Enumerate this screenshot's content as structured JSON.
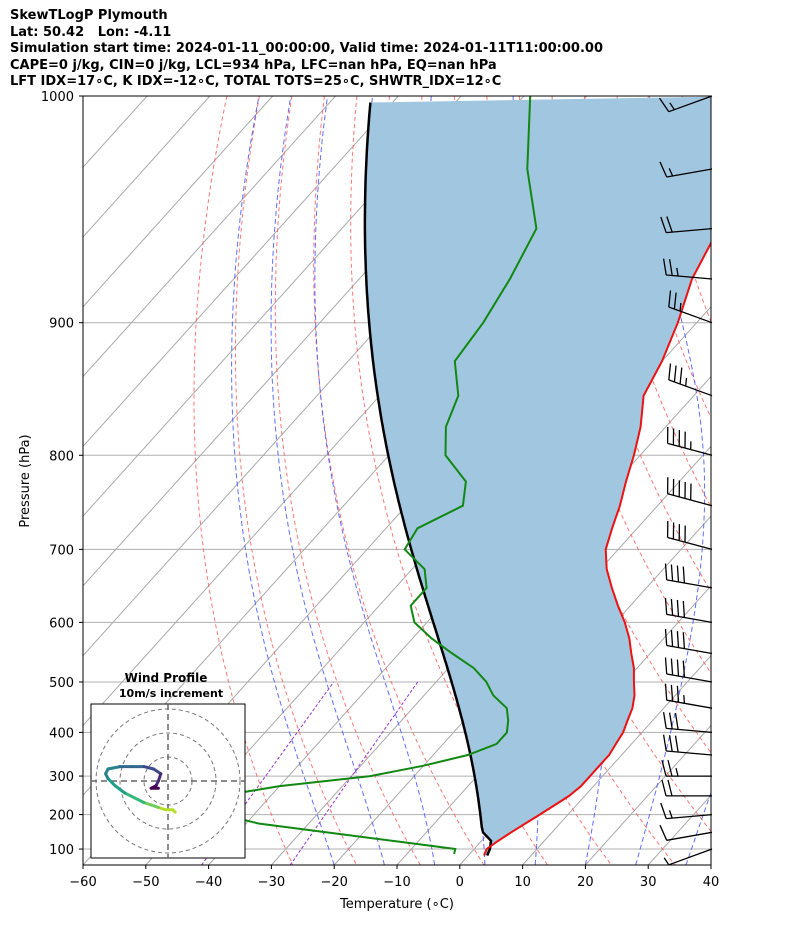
{
  "title_lines": [
    "SkewTLogP Plymouth",
    "Lat: 50.42   Lon: -4.11",
    "Simulation start time: 2024-01-11_00:00:00, Valid time: 2024-01-11T11:00:00.00",
    "CAPE=0 j/kg, CIN=0 j/kg, LCL=934 hPa, LFC=nan hPa, EQ=nan hPa",
    "LFT IDX=17∘C, K IDX=-12∘C, TOTAL TOTS=25∘C, SHWTR_IDX=12∘C"
  ],
  "colors": {
    "temperature": "#ee1111",
    "dewpoint": "#118811",
    "parcel": "#000000",
    "cape_fill": "#a1c6e0",
    "dry_adiabat": "#ff5555",
    "moist_adiabat": "#4455ff",
    "mixing_ratio": "#9933cc",
    "isotherm": "#aaaaaa",
    "grid": "#b0b0b0"
  },
  "chart_data": [
    {
      "type": "line",
      "subtype": "skew-t log-p",
      "xlabel": "Temperature (∘C)",
      "ylabel": "Pressure (hPa)",
      "xlim": [
        -60,
        40
      ],
      "ylim": [
        1050,
        100
      ],
      "y_scale": "log",
      "x_ticks": [
        -60,
        -50,
        -40,
        -30,
        -20,
        -10,
        0,
        10,
        20,
        30,
        40
      ],
      "x_tick_labels": [
        "−60",
        "−50",
        "−40",
        "−30",
        "−20",
        "−10",
        "0",
        "10",
        "20",
        "30",
        "40"
      ],
      "y_ticks": [
        1000,
        900,
        800,
        700,
        600,
        500,
        400,
        300,
        200,
        100
      ],
      "grid": true,
      "series": [
        {
          "role": "temperature",
          "p": [
            1020,
            1000,
            980,
            950,
            925,
            900,
            875,
            850,
            825,
            800,
            775,
            750,
            725,
            700,
            675,
            650,
            625,
            600,
            575,
            550,
            525,
            500,
            475,
            450,
            425,
            400,
            375,
            350,
            325,
            300,
            275,
            250,
            225,
            200,
            175,
            150,
            140,
            125,
            100
          ],
          "t": [
            2.5,
            2,
            2.5,
            3.5,
            4.5,
            5.5,
            6.5,
            7.5,
            8,
            8,
            8,
            8,
            7.5,
            7,
            6,
            5,
            3.5,
            1.5,
            -0.5,
            -3,
            -5.5,
            -8.5,
            -12,
            -15.5,
            -19,
            -22,
            -24,
            -26,
            -28.5,
            -31,
            -34,
            -38,
            -40,
            -43,
            -47,
            -50,
            -53,
            -56,
            -63
          ]
        },
        {
          "role": "dewpoint",
          "p": [
            1015,
            1000,
            980,
            950,
            925,
            900,
            875,
            850,
            825,
            800,
            775,
            750,
            725,
            700,
            675,
            650,
            625,
            600,
            575,
            550,
            525,
            500,
            475,
            450,
            425,
            400,
            375,
            350,
            325,
            300,
            275,
            250,
            225,
            200,
            175,
            150,
            125,
            100
          ],
          "t": [
            -2.5,
            -3,
            -12,
            -26,
            -38,
            -45,
            -48,
            -48,
            -40,
            -27,
            -20,
            -14.5,
            -11.5,
            -11.5,
            -13,
            -15,
            -19,
            -22,
            -26,
            -31.5,
            -37,
            -42,
            -45,
            -45,
            -48,
            -54,
            -55,
            -51,
            -54,
            -61,
            -65,
            -67.5,
            -73,
            -74,
            -76,
            -79,
            -89,
            -99
          ]
        }
      ],
      "parcel": {
        "p": [
          1020,
          1000,
          975,
          950,
          934
        ],
        "t": [
          3,
          2.5,
          1.5,
          -1,
          -2
        ]
      },
      "annotations": [
        "100",
        "200",
        "300",
        "400",
        "500",
        "600",
        "700",
        "800",
        "900",
        "1000"
      ]
    },
    {
      "type": "line",
      "subtype": "hodograph",
      "title": "Wind Profile",
      "subtitle": "10m/s increment",
      "rings_ms": [
        10,
        20,
        30
      ],
      "u": [
        3,
        2,
        -1,
        -4,
        -7,
        -10,
        -14,
        -18,
        -22,
        -25,
        -26,
        -25,
        -20,
        -15,
        -10,
        -6,
        -3,
        -4,
        -5,
        -7,
        -4
      ],
      "v": [
        -13,
        -12,
        -12,
        -11,
        -10,
        -9,
        -7,
        -5,
        -2,
        1,
        3,
        5,
        6,
        6,
        6,
        5,
        3,
        0,
        -2,
        -3,
        -3
      ]
    }
  ],
  "wind_barbs": {
    "p": [
      100,
      125,
      150,
      175,
      200,
      250,
      300,
      350,
      400,
      450,
      500,
      550,
      600,
      650,
      700,
      750,
      800,
      850,
      900,
      950,
      1000
    ],
    "speed_kt": [
      15,
      15,
      20,
      25,
      25,
      35,
      45,
      50,
      40,
      40,
      40,
      40,
      40,
      35,
      30,
      30,
      25,
      20,
      15,
      10,
      5
    ],
    "dir_deg": [
      250,
      260,
      265,
      275,
      290,
      290,
      285,
      285,
      285,
      280,
      280,
      280,
      280,
      280,
      275,
      275,
      270,
      270,
      265,
      260,
      250
    ]
  }
}
